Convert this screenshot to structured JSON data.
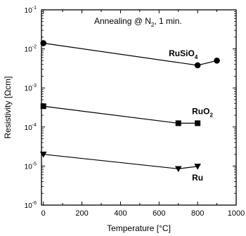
{
  "chart_data": {
    "type": "line",
    "annotation": "Annealing @ N",
    "annotation_sub": "2",
    "annotation_tail": ",  1 min.",
    "xlabel": "Temperature [°C]",
    "ylabel": "Resistivity [Ωcm]",
    "xlim": [
      -10,
      1000
    ],
    "ylim": [
      1e-06,
      0.1
    ],
    "yscale": "log",
    "x_ticks": [
      0,
      200,
      400,
      600,
      800,
      1000
    ],
    "x_tick_labels": [
      "0",
      "200",
      "400",
      "600",
      "800",
      "1000"
    ],
    "y_ticks": [
      1e-06,
      1e-05,
      0.0001,
      0.001,
      0.01,
      0.1
    ],
    "y_tick_labels": [
      {
        "base": "10",
        "exp": "-6"
      },
      {
        "base": "10",
        "exp": "-5"
      },
      {
        "base": "10",
        "exp": "-4"
      },
      {
        "base": "10",
        "exp": "-3"
      },
      {
        "base": "10",
        "exp": "-2"
      },
      {
        "base": "10",
        "exp": "-1"
      }
    ],
    "grid": false,
    "series": [
      {
        "label_main": "RuSiO",
        "label_sub": "4",
        "marker": "circle",
        "x": [
          0,
          800,
          900
        ],
        "y": [
          0.014,
          0.0038,
          0.005
        ]
      },
      {
        "label_main": "RuO",
        "label_sub": "2",
        "marker": "square",
        "x": [
          0,
          700,
          800
        ],
        "y": [
          0.00034,
          0.000125,
          0.000125
        ]
      },
      {
        "label_main": "Ru",
        "label_sub": "",
        "marker": "triangle-down",
        "x": [
          0,
          700,
          800
        ],
        "y": [
          2e-05,
          8.5e-06,
          9.8e-06
        ]
      }
    ]
  }
}
